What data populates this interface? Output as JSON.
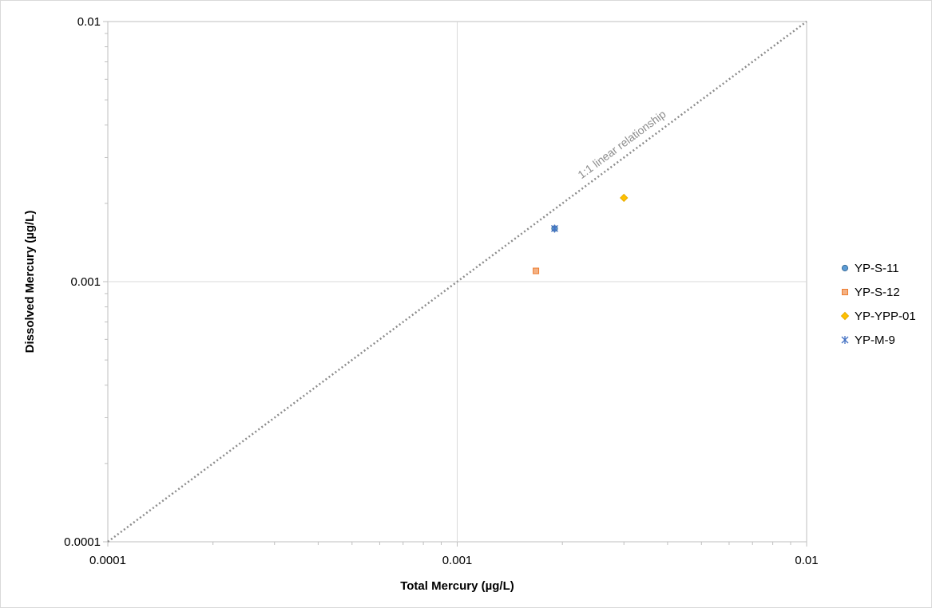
{
  "chart_data": {
    "type": "scatter",
    "title": "",
    "xlabel": "Total Mercury (µg/L)",
    "ylabel": "Dissolved Mercury (µg/L)",
    "xscale": "log",
    "yscale": "log",
    "xlim": [
      0.0001,
      0.01
    ],
    "ylim": [
      0.0001,
      0.01
    ],
    "x_ticks": [
      "0.0001",
      "0.001",
      "0.01"
    ],
    "y_ticks": [
      "0.0001",
      "0.001",
      "0.01"
    ],
    "grid": "major",
    "legend_position": "right",
    "reference_line": {
      "label": "1:1 linear relationship",
      "style": "dotted",
      "color": "#8c8c8c",
      "x": [
        0.0001,
        0.01
      ],
      "y": [
        0.0001,
        0.01
      ]
    },
    "series": [
      {
        "name": "YP-S-11",
        "marker": "circle",
        "color": "#5b9bd5",
        "points": [
          {
            "x": 0.0019,
            "y": 0.0016
          }
        ]
      },
      {
        "name": "YP-S-12",
        "marker": "square",
        "color": "#ed7d31",
        "points": [
          {
            "x": 0.00168,
            "y": 0.0011
          }
        ]
      },
      {
        "name": "YP-YPP-01",
        "marker": "diamond",
        "color": "#ffc000",
        "points": [
          {
            "x": 0.003,
            "y": 0.0021
          }
        ]
      },
      {
        "name": "YP-M-9",
        "marker": "asterisk",
        "color": "#4472c4",
        "points": [
          {
            "x": 0.0019,
            "y": 0.0016
          }
        ]
      }
    ]
  }
}
